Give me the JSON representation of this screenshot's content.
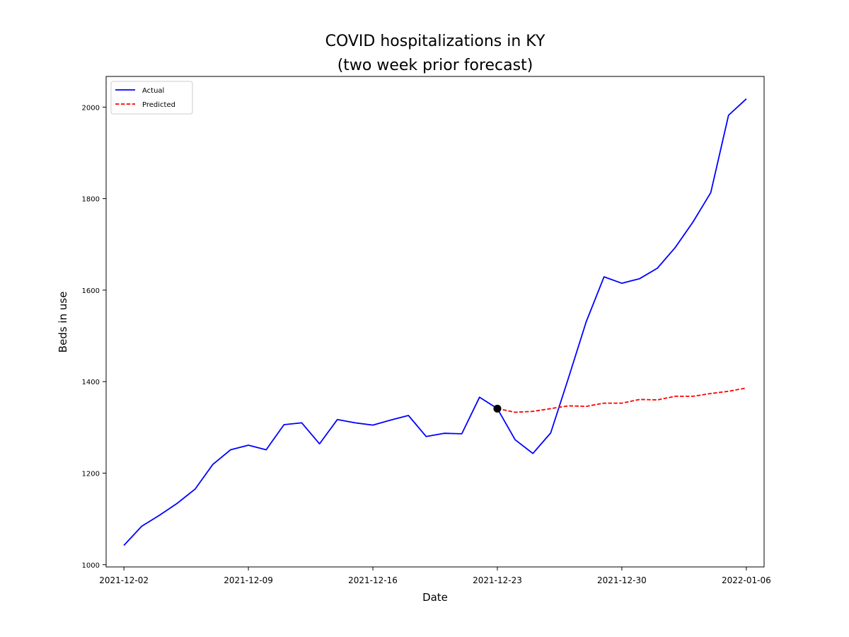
{
  "chart_data": {
    "type": "line",
    "title": [
      "COVID hospitalizations in KY",
      "(two week prior forecast)"
    ],
    "xlabel": "Date",
    "ylabel": "Beds in use",
    "x_tick_labels": [
      "2021-12-02",
      "2021-12-09",
      "2021-12-16",
      "2021-12-23",
      "2021-12-30",
      "2022-01-06"
    ],
    "y_tick_labels": [
      "1000",
      "1200",
      "1400",
      "1600",
      "1800",
      "2000"
    ],
    "xlim": [
      "2021-12-01",
      "2022-01-07"
    ],
    "ylim": [
      995,
      2067
    ],
    "grid": false,
    "legend_position": "upper-left",
    "forecast_start": {
      "x": "2021-12-23",
      "y": 1341
    },
    "series": [
      {
        "name": "Actual",
        "color": "#0000ff",
        "style": "solid",
        "x": [
          "2021-12-02",
          "2021-12-03",
          "2021-12-04",
          "2021-12-05",
          "2021-12-06",
          "2021-12-07",
          "2021-12-08",
          "2021-12-09",
          "2021-12-10",
          "2021-12-11",
          "2021-12-12",
          "2021-12-13",
          "2021-12-14",
          "2021-12-15",
          "2021-12-16",
          "2021-12-17",
          "2021-12-18",
          "2021-12-19",
          "2021-12-20",
          "2021-12-21",
          "2021-12-22",
          "2021-12-23",
          "2021-12-24",
          "2021-12-25",
          "2021-12-26",
          "2021-12-27",
          "2021-12-28",
          "2021-12-29",
          "2021-12-30",
          "2021-12-31",
          "2022-01-01",
          "2022-01-02",
          "2022-01-03",
          "2022-01-04",
          "2022-01-05",
          "2022-01-06"
        ],
        "values": [
          1042,
          1084,
          1108,
          1134,
          1165,
          1219,
          1251,
          1261,
          1251,
          1306,
          1310,
          1264,
          1317,
          1310,
          1305,
          1316,
          1326,
          1280,
          1287,
          1286,
          1366,
          1341,
          1273,
          1243,
          1288,
          1408,
          1531,
          1629,
          1615,
          1625,
          1648,
          1693,
          1749,
          1813,
          1982,
          2018
        ]
      },
      {
        "name": "Predicted",
        "color": "#ff0000",
        "style": "dashed",
        "x": [
          "2021-12-23",
          "2021-12-24",
          "2021-12-25",
          "2021-12-26",
          "2021-12-27",
          "2021-12-28",
          "2021-12-29",
          "2021-12-30",
          "2021-12-31",
          "2022-01-01",
          "2022-01-02",
          "2022-01-03",
          "2022-01-04",
          "2022-01-05",
          "2022-01-06"
        ],
        "values": [
          1341,
          1333,
          1335,
          1341,
          1347,
          1346,
          1353,
          1353,
          1361,
          1360,
          1368,
          1368,
          1374,
          1379,
          1386
        ]
      }
    ]
  }
}
